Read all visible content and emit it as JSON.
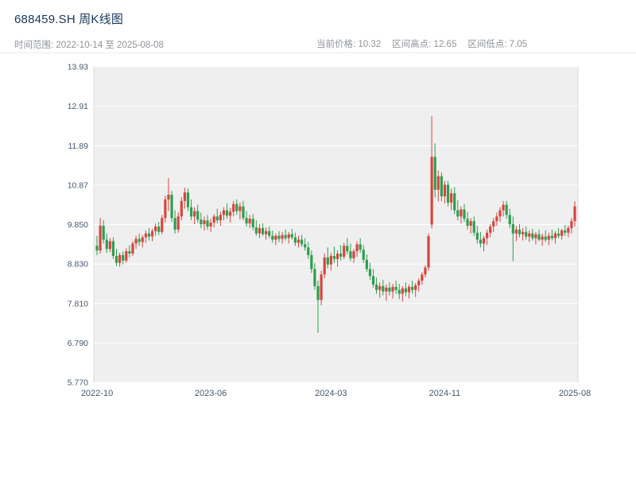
{
  "header": {
    "title": "688459.SH 周K线图",
    "date_range": "时间范围: 2022-10-14 至 2025-08-08",
    "stats": [
      "当前价格: 10.32",
      "区间高点: 12.65",
      "区间低点: 7.05"
    ]
  },
  "chart_data": {
    "type": "candlestick",
    "title": "688459.SH 周K线图",
    "symbol": "688459.SH",
    "period": "weekly",
    "start_date": "2022-10-14",
    "end_date": "2025-08-08",
    "current_price": 10.32,
    "range_high": 12.65,
    "range_low": 7.05,
    "ylim": [
      5.77,
      13.93
    ],
    "grid": true,
    "legend": "none",
    "y_ticks": [
      {
        "value": 13.93,
        "label": "13.93"
      },
      {
        "value": 12.91,
        "label": "12.91"
      },
      {
        "value": 11.89,
        "label": "11.89"
      },
      {
        "value": 10.87,
        "label": "10.87"
      },
      {
        "value": 9.85,
        "label": "9.850"
      },
      {
        "value": 8.83,
        "label": "8.830"
      },
      {
        "value": 7.81,
        "label": "7.810"
      },
      {
        "value": 6.79,
        "label": "6.790"
      },
      {
        "value": 5.77,
        "label": "5.770"
      }
    ],
    "x_ticks": [
      {
        "index": 0,
        "label": "2022-10"
      },
      {
        "index": 35,
        "label": "2023-06"
      },
      {
        "index": 72,
        "label": "2024-03"
      },
      {
        "index": 107,
        "label": "2024-11"
      },
      {
        "index": 147,
        "label": "2025-08"
      }
    ],
    "colors": {
      "up": "#d8453e",
      "down": "#2e9e4f",
      "plot_bg": "#efefef",
      "grid": "#ffffff",
      "border": "#d8d8d8",
      "tick_label": "#47586d",
      "title": "#17375e",
      "subtitle": "#8f9398"
    },
    "candles": [
      [
        9.3,
        9.56,
        9.06,
        9.18
      ],
      [
        9.18,
        10.02,
        9.1,
        9.82
      ],
      [
        9.82,
        9.96,
        9.36,
        9.46
      ],
      [
        9.46,
        9.62,
        9.12,
        9.22
      ],
      [
        9.22,
        9.5,
        9.14,
        9.42
      ],
      [
        9.42,
        9.52,
        8.96,
        9.04
      ],
      [
        9.04,
        9.22,
        8.78,
        8.86
      ],
      [
        8.86,
        9.12,
        8.76,
        9.06
      ],
      [
        9.06,
        9.16,
        8.82,
        8.92
      ],
      [
        8.92,
        9.24,
        8.86,
        9.16
      ],
      [
        9.16,
        9.32,
        9.0,
        9.1
      ],
      [
        9.1,
        9.42,
        9.04,
        9.36
      ],
      [
        9.36,
        9.56,
        9.22,
        9.48
      ],
      [
        9.48,
        9.62,
        9.3,
        9.4
      ],
      [
        9.4,
        9.58,
        9.26,
        9.52
      ],
      [
        9.52,
        9.7,
        9.38,
        9.62
      ],
      [
        9.62,
        9.76,
        9.44,
        9.54
      ],
      [
        9.54,
        9.74,
        9.42,
        9.68
      ],
      [
        9.68,
        9.88,
        9.56,
        9.8
      ],
      [
        9.8,
        9.92,
        9.58,
        9.66
      ],
      [
        9.66,
        10.1,
        9.6,
        10.02
      ],
      [
        10.02,
        10.6,
        9.9,
        10.5
      ],
      [
        10.5,
        11.05,
        10.2,
        10.62
      ],
      [
        10.62,
        10.72,
        9.92,
        10.02
      ],
      [
        10.02,
        10.22,
        9.62,
        9.72
      ],
      [
        9.72,
        10.16,
        9.64,
        10.06
      ],
      [
        10.06,
        10.56,
        9.96,
        10.46
      ],
      [
        10.46,
        10.8,
        10.26,
        10.68
      ],
      [
        10.68,
        10.78,
        10.2,
        10.3
      ],
      [
        10.3,
        10.5,
        9.96,
        10.06
      ],
      [
        10.06,
        10.3,
        9.86,
        10.2
      ],
      [
        10.2,
        10.36,
        9.9,
        9.98
      ],
      [
        9.98,
        10.16,
        9.76,
        9.86
      ],
      [
        9.86,
        10.06,
        9.7,
        9.96
      ],
      [
        9.96,
        10.1,
        9.72,
        9.8
      ],
      [
        9.8,
        10.0,
        9.66,
        9.9
      ],
      [
        9.9,
        10.12,
        9.78,
        10.06
      ],
      [
        10.06,
        10.26,
        9.88,
        9.96
      ],
      [
        9.96,
        10.18,
        9.82,
        10.1
      ],
      [
        10.1,
        10.3,
        9.96,
        10.22
      ],
      [
        10.22,
        10.4,
        10.0,
        10.08
      ],
      [
        10.08,
        10.28,
        9.9,
        10.18
      ],
      [
        10.18,
        10.46,
        10.06,
        10.38
      ],
      [
        10.38,
        10.5,
        10.1,
        10.2
      ],
      [
        10.2,
        10.42,
        9.98,
        10.32
      ],
      [
        10.32,
        10.46,
        9.96,
        10.02
      ],
      [
        10.02,
        10.2,
        9.8,
        9.88
      ],
      [
        9.88,
        10.1,
        9.76,
        10.0
      ],
      [
        10.0,
        10.12,
        9.7,
        9.78
      ],
      [
        9.78,
        9.96,
        9.56,
        9.62
      ],
      [
        9.62,
        9.86,
        9.5,
        9.76
      ],
      [
        9.76,
        9.88,
        9.56,
        9.6
      ],
      [
        9.6,
        9.78,
        9.46,
        9.68
      ],
      [
        9.68,
        9.8,
        9.5,
        9.56
      ],
      [
        9.56,
        9.7,
        9.38,
        9.46
      ],
      [
        9.46,
        9.62,
        9.32,
        9.56
      ],
      [
        9.56,
        9.68,
        9.4,
        9.48
      ],
      [
        9.48,
        9.66,
        9.36,
        9.58
      ],
      [
        9.58,
        9.72,
        9.44,
        9.5
      ],
      [
        9.5,
        9.66,
        9.36,
        9.6
      ],
      [
        9.6,
        9.74,
        9.46,
        9.52
      ],
      [
        9.52,
        9.64,
        9.3,
        9.38
      ],
      [
        9.38,
        9.56,
        9.26,
        9.46
      ],
      [
        9.46,
        9.58,
        9.28,
        9.34
      ],
      [
        9.34,
        9.5,
        9.18,
        9.26
      ],
      [
        9.26,
        9.4,
        8.96,
        9.06
      ],
      [
        9.06,
        9.18,
        8.6,
        8.7
      ],
      [
        8.7,
        8.86,
        8.16,
        8.26
      ],
      [
        8.26,
        8.4,
        7.05,
        7.9
      ],
      [
        7.9,
        8.66,
        7.76,
        8.56
      ],
      [
        8.56,
        9.1,
        8.46,
        9.0
      ],
      [
        9.0,
        9.26,
        8.72,
        8.82
      ],
      [
        8.82,
        9.12,
        8.66,
        9.04
      ],
      [
        9.04,
        9.28,
        8.86,
        8.96
      ],
      [
        8.96,
        9.18,
        8.76,
        9.1
      ],
      [
        9.1,
        9.32,
        8.92,
        9.02
      ],
      [
        9.02,
        9.38,
        8.96,
        9.3
      ],
      [
        9.3,
        9.5,
        9.08,
        9.16
      ],
      [
        9.16,
        9.36,
        8.9,
        8.98
      ],
      [
        8.98,
        9.22,
        8.86,
        9.16
      ],
      [
        9.16,
        9.42,
        9.02,
        9.34
      ],
      [
        9.34,
        9.5,
        9.12,
        9.2
      ],
      [
        9.2,
        9.32,
        8.86,
        8.94
      ],
      [
        8.94,
        9.08,
        8.62,
        8.7
      ],
      [
        8.7,
        8.86,
        8.42,
        8.52
      ],
      [
        8.52,
        8.7,
        8.22,
        8.3
      ],
      [
        8.3,
        8.48,
        8.06,
        8.16
      ],
      [
        8.16,
        8.36,
        7.96,
        8.26
      ],
      [
        8.26,
        8.42,
        8.02,
        8.12
      ],
      [
        8.12,
        8.3,
        7.88,
        8.22
      ],
      [
        8.22,
        8.36,
        8.02,
        8.12
      ],
      [
        8.12,
        8.32,
        7.94,
        8.24
      ],
      [
        8.24,
        8.4,
        8.06,
        8.16
      ],
      [
        8.16,
        8.32,
        7.92,
        8.06
      ],
      [
        8.06,
        8.26,
        7.86,
        8.2
      ],
      [
        8.2,
        8.36,
        8.0,
        8.1
      ],
      [
        8.1,
        8.3,
        7.94,
        8.24
      ],
      [
        8.24,
        8.4,
        8.06,
        8.16
      ],
      [
        8.16,
        8.34,
        7.98,
        8.28
      ],
      [
        8.28,
        8.46,
        8.12,
        8.4
      ],
      [
        8.4,
        8.62,
        8.3,
        8.56
      ],
      [
        8.56,
        8.8,
        8.48,
        8.74
      ],
      [
        8.74,
        9.62,
        8.66,
        9.55
      ],
      [
        9.85,
        12.65,
        9.75,
        11.6
      ],
      [
        11.6,
        11.95,
        10.55,
        10.75
      ],
      [
        10.75,
        11.25,
        10.45,
        11.1
      ],
      [
        11.1,
        11.2,
        10.45,
        10.58
      ],
      [
        10.58,
        10.98,
        10.4,
        10.88
      ],
      [
        10.88,
        10.98,
        10.32,
        10.42
      ],
      [
        10.42,
        10.78,
        10.22,
        10.66
      ],
      [
        10.66,
        10.82,
        10.12,
        10.22
      ],
      [
        10.22,
        10.48,
        9.96,
        10.06
      ],
      [
        10.06,
        10.32,
        9.88,
        10.24
      ],
      [
        10.24,
        10.38,
        9.92,
        10.0
      ],
      [
        10.0,
        10.18,
        9.72,
        9.82
      ],
      [
        9.82,
        10.02,
        9.62,
        9.94
      ],
      [
        9.94,
        10.06,
        9.56,
        9.64
      ],
      [
        9.64,
        9.82,
        9.36,
        9.46
      ],
      [
        9.46,
        9.66,
        9.26,
        9.36
      ],
      [
        9.36,
        9.56,
        9.16,
        9.5
      ],
      [
        9.5,
        9.72,
        9.32,
        9.64
      ],
      [
        9.64,
        9.86,
        9.52,
        9.8
      ],
      [
        9.8,
        10.02,
        9.66,
        9.94
      ],
      [
        9.94,
        10.16,
        9.82,
        10.06
      ],
      [
        10.06,
        10.3,
        9.92,
        10.22
      ],
      [
        10.22,
        10.46,
        10.06,
        10.36
      ],
      [
        10.36,
        10.46,
        10.0,
        10.1
      ],
      [
        10.1,
        10.26,
        9.76,
        9.86
      ],
      [
        9.86,
        10.06,
        8.9,
        9.62
      ],
      [
        9.62,
        9.82,
        9.42,
        9.72
      ],
      [
        9.72,
        9.86,
        9.52,
        9.6
      ],
      [
        9.6,
        9.76,
        9.44,
        9.66
      ],
      [
        9.66,
        9.8,
        9.46,
        9.54
      ],
      [
        9.54,
        9.7,
        9.4,
        9.62
      ],
      [
        9.62,
        9.74,
        9.44,
        9.5
      ],
      [
        9.5,
        9.66,
        9.34,
        9.6
      ],
      [
        9.6,
        9.72,
        9.42,
        9.46
      ],
      [
        9.46,
        9.62,
        9.3,
        9.54
      ],
      [
        9.54,
        9.7,
        9.4,
        9.46
      ],
      [
        9.46,
        9.64,
        9.32,
        9.56
      ],
      [
        9.56,
        9.72,
        9.44,
        9.5
      ],
      [
        9.5,
        9.68,
        9.36,
        9.62
      ],
      [
        9.62,
        9.76,
        9.5,
        9.56
      ],
      [
        9.56,
        9.74,
        9.46,
        9.7
      ],
      [
        9.7,
        9.84,
        9.56,
        9.64
      ],
      [
        9.64,
        9.82,
        9.52,
        9.76
      ],
      [
        9.76,
        10.02,
        9.62,
        9.94
      ],
      [
        9.94,
        10.45,
        9.8,
        10.32
      ]
    ]
  }
}
